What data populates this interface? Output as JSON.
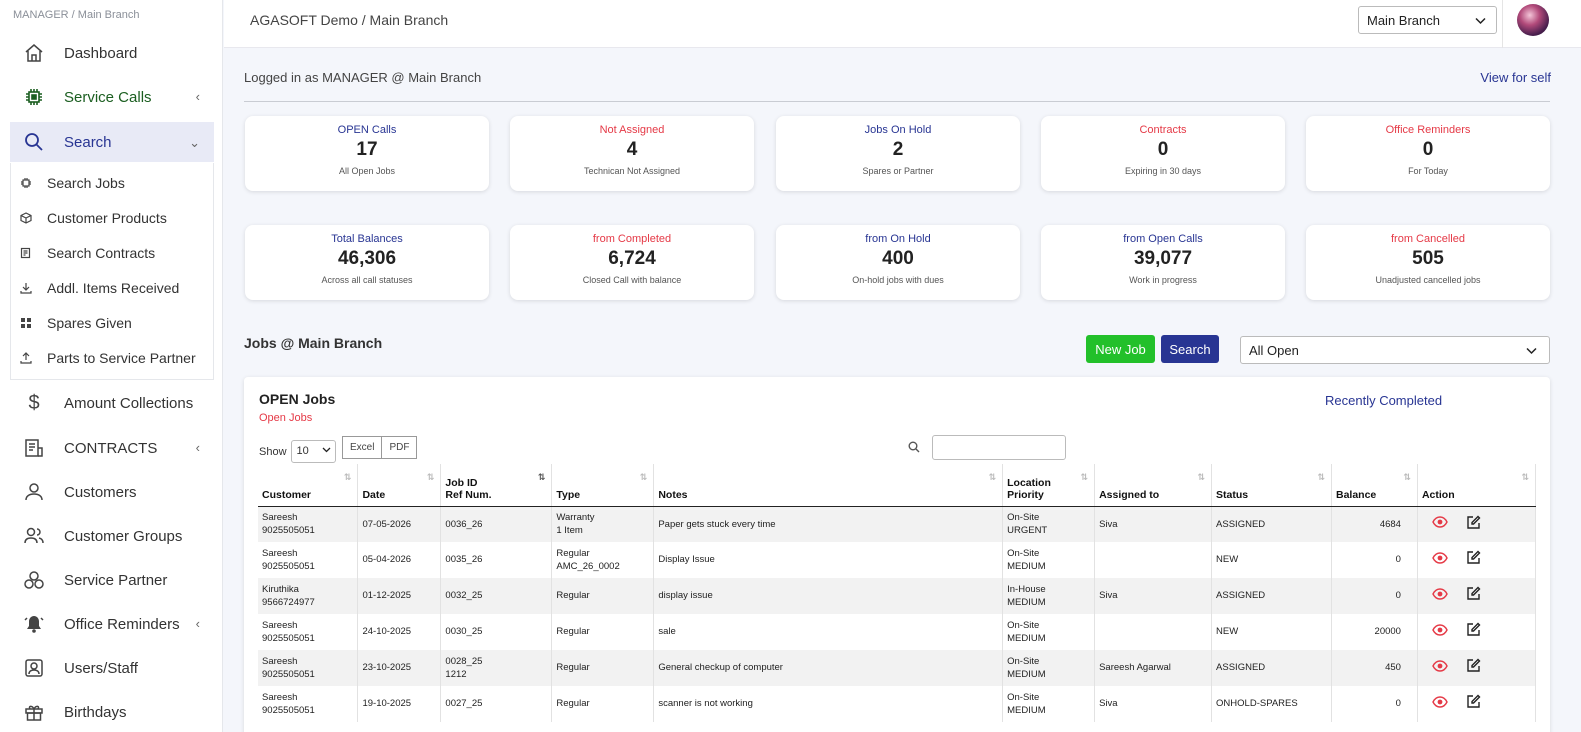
{
  "sidebar": {
    "crumb": "MANAGER / Main Branch",
    "items": {
      "dashboard": "Dashboard",
      "service_calls": "Service Calls",
      "search": "Search",
      "amount_collections": "Amount Collections",
      "contracts": "CONTRACTS",
      "customers": "Customers",
      "customer_groups": "Customer Groups",
      "service_partner": "Service Partner",
      "office_reminders": "Office Reminders",
      "users_staff": "Users/Staff",
      "birthdays": "Birthdays"
    },
    "submenu": {
      "search_jobs": "Search Jobs",
      "customer_products": "Customer Products",
      "search_contracts": "Search Contracts",
      "addl_items": "Addl. Items Received",
      "spares_given": "Spares Given",
      "parts_to_partner": "Parts to Service Partner"
    }
  },
  "header": {
    "breadcrumb": "AGASOFT Demo / Main Branch",
    "branch_select": "Main Branch"
  },
  "logged_in": "Logged in as MANAGER @ Main Branch",
  "view_for_self": "View for self",
  "cards_row1": [
    {
      "title": "OPEN Calls",
      "value": "17",
      "sub": "All Open Jobs",
      "red": false
    },
    {
      "title": "Not Assigned",
      "value": "4",
      "sub": "Technican Not Assigned",
      "red": true
    },
    {
      "title": "Jobs On Hold",
      "value": "2",
      "sub": "Spares or Partner",
      "red": false
    },
    {
      "title": "Contracts",
      "value": "0",
      "sub": "Expiring in 30 days",
      "red": true
    },
    {
      "title": "Office Reminders",
      "value": "0",
      "sub": "For Today",
      "red": true
    }
  ],
  "cards_row2": [
    {
      "title": "Total Balances",
      "value": "46,306",
      "sub": "Across all call statuses",
      "red": false
    },
    {
      "title": "from Completed",
      "value": "6,724",
      "sub": "Closed Call with balance",
      "red": true
    },
    {
      "title": "from On Hold",
      "value": "400",
      "sub": "On-hold jobs with dues",
      "red": false
    },
    {
      "title": "from Open Calls",
      "value": "39,077",
      "sub": "Work in progress",
      "red": false
    },
    {
      "title": "from Cancelled",
      "value": "505",
      "sub": "Unadjusted cancelled jobs",
      "red": true
    }
  ],
  "jobs": {
    "title": "Jobs @ Main Branch",
    "new_job": "New Job",
    "search": "Search",
    "filter": "All Open"
  },
  "panel": {
    "title": "OPEN Jobs",
    "subtitle": "Open Jobs",
    "recently_completed": "Recently Completed",
    "show_label": "Show",
    "show_value": "10",
    "excel": "Excel",
    "pdf": "PDF"
  },
  "table": {
    "headers": {
      "customer": "Customer",
      "date": "Date",
      "jobid_1": "Job ID",
      "jobid_2": "Ref Num.",
      "type": "Type",
      "notes": "Notes",
      "loc_1": "Location",
      "loc_2": "Priority",
      "assigned": "Assigned to",
      "status": "Status",
      "balance": "Balance",
      "action": "Action"
    },
    "rows": [
      {
        "name": "Sareesh",
        "phone": "9025505051",
        "date": "07-05-2026",
        "jobid": "0036_26",
        "ref": "",
        "type": "Warranty",
        "type2": "1 Item",
        "notes": "Paper gets stuck every time",
        "loc": "On-Site",
        "prio": "URGENT",
        "assigned": "Siva",
        "status": "ASSIGNED",
        "balance": "4684"
      },
      {
        "name": "Sareesh",
        "phone": "9025505051",
        "date": "05-04-2026",
        "jobid": "0035_26",
        "ref": "",
        "type": "Regular",
        "type2": "AMC_26_0002",
        "notes": "Display Issue",
        "loc": "On-Site",
        "prio": "MEDIUM",
        "assigned": "",
        "status": "NEW",
        "balance": "0"
      },
      {
        "name": "Kiruthika",
        "phone": "9566724977",
        "date": "01-12-2025",
        "jobid": "0032_25",
        "ref": "",
        "type": "Regular",
        "type2": "",
        "notes": "display issue",
        "loc": "In-House",
        "prio": "MEDIUM",
        "assigned": "Siva",
        "status": "ASSIGNED",
        "balance": "0"
      },
      {
        "name": "Sareesh",
        "phone": "9025505051",
        "date": "24-10-2025",
        "jobid": "0030_25",
        "ref": "",
        "type": "Regular",
        "type2": "",
        "notes": "sale",
        "loc": "On-Site",
        "prio": "MEDIUM",
        "assigned": "",
        "status": "NEW",
        "balance": "20000"
      },
      {
        "name": "Sareesh",
        "phone": "9025505051",
        "date": "23-10-2025",
        "jobid": "0028_25",
        "ref": "1212",
        "type": "Regular",
        "type2": "",
        "notes": "General checkup of computer",
        "loc": "On-Site",
        "prio": "MEDIUM",
        "assigned": "Sareesh Agarwal",
        "status": "ASSIGNED",
        "balance": "450"
      },
      {
        "name": "Sareesh",
        "phone": "9025505051",
        "date": "19-10-2025",
        "jobid": "0027_25",
        "ref": "",
        "type": "Regular",
        "type2": "",
        "notes": "scanner is not working",
        "loc": "On-Site",
        "prio": "MEDIUM",
        "assigned": "Siva",
        "status": "ONHOLD-SPARES",
        "balance": "0"
      }
    ]
  },
  "colors": {
    "primary": "#283593",
    "accent_red": "#e53946",
    "new_job_green": "#22c02a"
  }
}
